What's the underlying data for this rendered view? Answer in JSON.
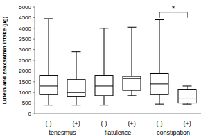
{
  "chart_data": {
    "type": "box",
    "y_label": "Lutein and zeaxanthin intake (µg)",
    "categories": [
      "(-)",
      "(+)",
      "(-)",
      "(+)",
      "(-)",
      "(+)"
    ],
    "groups": [
      "tenesmus",
      "flatulence",
      "constipation"
    ],
    "min": [
      400,
      400,
      400,
      850,
      450,
      450
    ],
    "q1": [
      900,
      800,
      850,
      1100,
      900,
      500
    ],
    "median": [
      1300,
      1000,
      1300,
      1650,
      1400,
      700
    ],
    "q3": [
      1800,
      1600,
      1800,
      1750,
      1900,
      1150
    ],
    "max": [
      4450,
      2900,
      4000,
      4050,
      4400,
      1300
    ],
    "color": "#000000",
    "ylim": [
      0,
      5000
    ],
    "yticks": [
      0,
      500,
      1000,
      1500,
      2000,
      2500,
      3000,
      3500,
      4000,
      4500,
      5000
    ],
    "grid": false,
    "annotations": [
      {
        "text": "*",
        "from": 4,
        "to": 5,
        "y": 4750
      }
    ]
  }
}
